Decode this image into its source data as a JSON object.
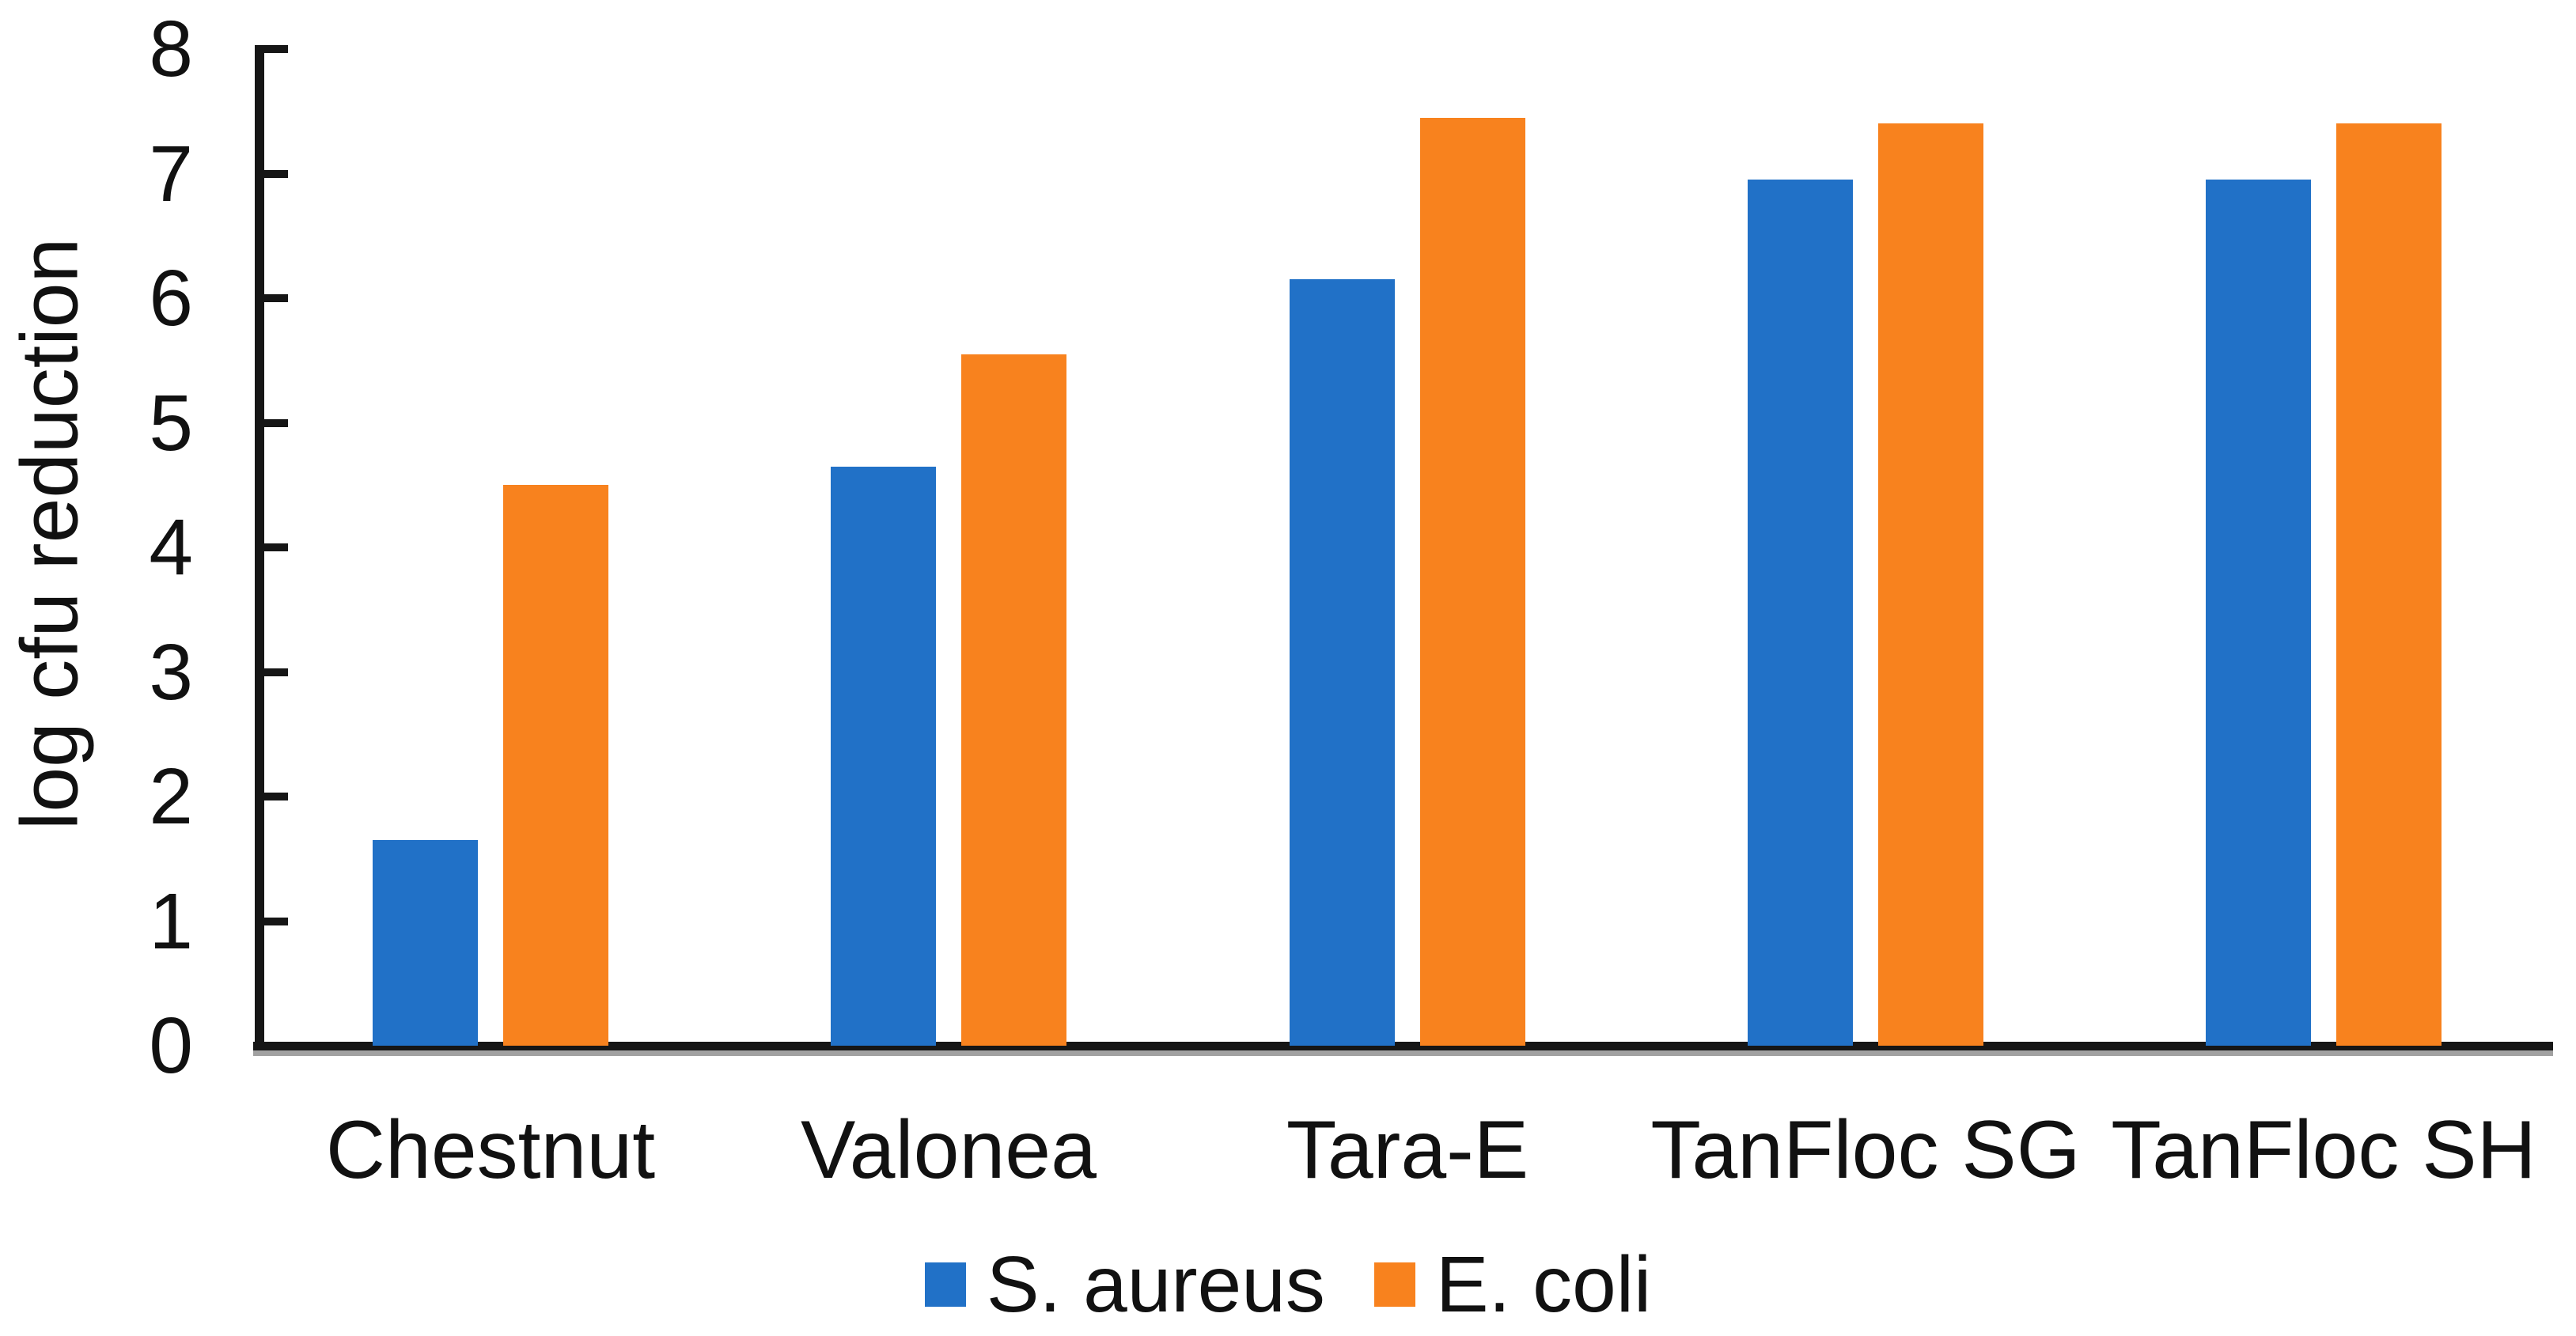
{
  "figure": {
    "background_color": "#ffffff",
    "axis_color": "#161616",
    "text_color": "#111111"
  },
  "chart_data": {
    "type": "bar",
    "title": "",
    "xlabel": "",
    "ylabel": "log cfu reduction",
    "ylim": [
      0,
      8
    ],
    "yticks": [
      "0",
      "1",
      "2",
      "3",
      "4",
      "5",
      "6",
      "7",
      "8"
    ],
    "grid": false,
    "legend_position": "bottom-center",
    "categories": [
      "Chestnut",
      "Valonea",
      "Tara-E",
      "TanFloc SG",
      "TanFloc SH"
    ],
    "series": [
      {
        "name": "S. aureus",
        "color": "#2171C7",
        "values": [
          1.65,
          4.65,
          6.15,
          6.95,
          6.95
        ]
      },
      {
        "name": "E. coli",
        "color": "#F8821E",
        "values": [
          4.5,
          5.55,
          7.45,
          7.4,
          7.4
        ]
      }
    ]
  }
}
